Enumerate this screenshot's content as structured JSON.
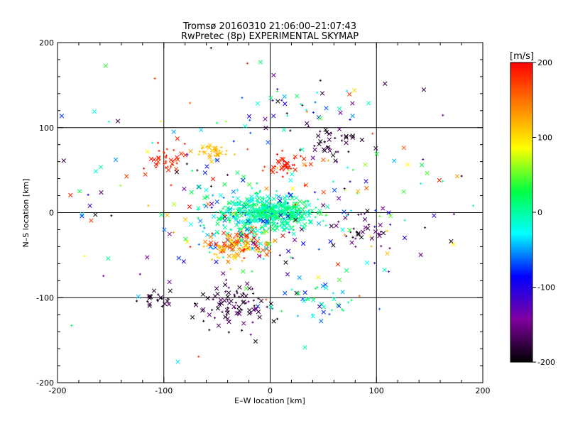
{
  "chart_data": {
    "type": "scatter",
    "title": "Tromsø 20160310 21:06:00–21:07:43",
    "subtitle": "RwPretec (8p) EXPERIMENTAL SKYMAP",
    "xlabel": "E–W location [km]",
    "ylabel": "N–S location [km]",
    "xlim": [
      -200,
      200
    ],
    "ylim": [
      -200,
      200
    ],
    "xticks": [
      "-200",
      "-100",
      "0",
      "100",
      "200"
    ],
    "yticks": [
      "-200",
      "-100",
      "0",
      "100",
      "200"
    ],
    "grid": true,
    "colorbar": {
      "label": "[m/s]",
      "range": [
        -200,
        200
      ],
      "ticks": [
        "200",
        "100",
        "0",
        "-100",
        "-200"
      ],
      "colormap": [
        "#000000",
        "#8000a0",
        "#0000ff",
        "#00ffff",
        "#00ff40",
        "#ffff00",
        "#ff8000",
        "#ff0000"
      ]
    },
    "marker_types": [
      "plus",
      "cross"
    ],
    "clusters": [
      {
        "x": 0,
        "y": 0,
        "sx": 22,
        "sy": 9,
        "n": 420,
        "v": [
          -25,
          30
        ]
      },
      {
        "x": -25,
        "y": -5,
        "sx": 22,
        "sy": 22,
        "n": 160,
        "v": [
          -70,
          40
        ]
      },
      {
        "x": -30,
        "y": -38,
        "sx": 16,
        "sy": 9,
        "n": 130,
        "v": [
          90,
          200
        ]
      },
      {
        "x": -35,
        "y": -110,
        "sx": 16,
        "sy": 14,
        "n": 90,
        "v": [
          -200,
          -150
        ]
      },
      {
        "x": -55,
        "y": 72,
        "sx": 8,
        "sy": 5,
        "n": 35,
        "v": [
          100,
          130
        ]
      },
      {
        "x": -95,
        "y": 58,
        "sx": 9,
        "sy": 10,
        "n": 40,
        "v": [
          170,
          200
        ]
      },
      {
        "x": 15,
        "y": 55,
        "sx": 9,
        "sy": 6,
        "n": 40,
        "v": [
          170,
          200
        ]
      },
      {
        "x": 55,
        "y": 85,
        "sx": 12,
        "sy": 9,
        "n": 40,
        "v": [
          -200,
          -160
        ]
      },
      {
        "x": 90,
        "y": -20,
        "sx": 12,
        "sy": 12,
        "n": 35,
        "v": [
          -200,
          -150
        ]
      },
      {
        "x": 40,
        "y": -110,
        "sx": 22,
        "sy": 12,
        "n": 40,
        "v": [
          -80,
          40
        ]
      },
      {
        "x": -110,
        "y": -100,
        "sx": 8,
        "sy": 4,
        "n": 20,
        "v": [
          -200,
          -170
        ]
      },
      {
        "x": 30,
        "y": 130,
        "sx": 30,
        "sy": 15,
        "n": 30,
        "v": [
          -200,
          40
        ]
      },
      {
        "x": 0,
        "y": 20,
        "sx": 110,
        "sy": 70,
        "n": 240,
        "v": [
          -200,
          200
        ]
      }
    ]
  }
}
